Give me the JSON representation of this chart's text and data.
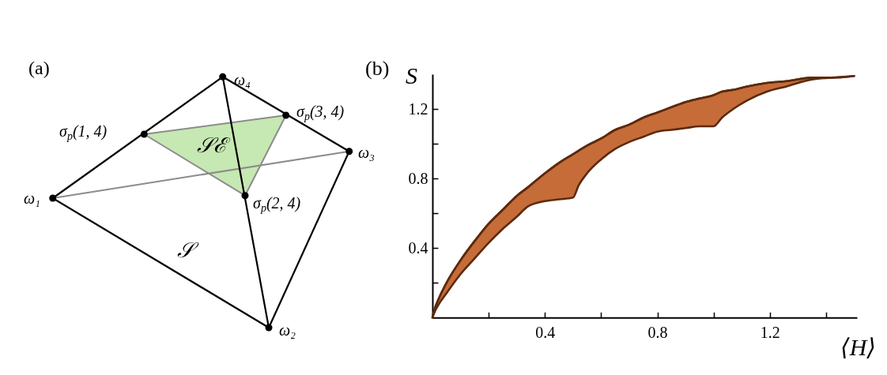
{
  "chart_data": [
    {
      "type": "other",
      "title": "(a)",
      "annotations": [
        "ω₄",
        "σ$_{p}$(3, 4)",
        "σ$_{p}$(1, 4)",
        "𝒮ℰ",
        "ω₃",
        "ω₁",
        "σ$_{p}$(2, 4)",
        "𝒮",
        "ω₂"
      ]
    },
    {
      "type": "line",
      "title": "(b)",
      "xlabel": "⟨H⟩",
      "ylabel": "S",
      "xlim": [
        0,
        1.51
      ],
      "ylim": [
        0,
        1.4
      ],
      "xticks": [
        {
          "value": 0.2,
          "label": null
        },
        0.4,
        {
          "value": 0.6,
          "label": null
        },
        0.8,
        {
          "value": 1.0,
          "label": null
        },
        1.2,
        {
          "value": 1.4,
          "label": null
        }
      ],
      "yticks": [
        {
          "value": 0.2,
          "label": null
        },
        0.4,
        {
          "value": 0.6,
          "label": null
        },
        0.8,
        {
          "value": 1.0,
          "label": null
        },
        1.2
      ],
      "series": [
        {
          "color": "#5c2a0e",
          "x": [
            0,
            0.01,
            0.02,
            0.05,
            0.1,
            0.15,
            0.2,
            0.25,
            0.3,
            0.34,
            0.4,
            0.45,
            0.5,
            0.52,
            0.55,
            0.6,
            0.65,
            0.7,
            0.75,
            0.8,
            0.85,
            0.9,
            0.95,
            1.0,
            1.03,
            1.07,
            1.12,
            1.19,
            1.26,
            1.35,
            1.42,
            1.5
          ],
          "values": [
            0,
            0.06,
            0.1,
            0.2,
            0.33,
            0.44,
            0.54,
            0.62,
            0.7,
            0.75,
            0.83,
            0.89,
            0.94,
            0.96,
            0.99,
            1.03,
            1.08,
            1.11,
            1.15,
            1.18,
            1.21,
            1.24,
            1.26,
            1.28,
            1.3,
            1.31,
            1.33,
            1.35,
            1.36,
            1.38,
            1.38,
            1.39
          ],
          "upper": [
            0,
            0.06,
            0.1,
            0.2,
            0.33,
            0.44,
            0.54,
            0.62,
            0.7,
            0.75,
            0.83,
            0.89,
            0.94,
            0.96,
            0.99,
            1.03,
            1.08,
            1.11,
            1.15,
            1.18,
            1.21,
            1.24,
            1.26,
            1.28,
            1.3,
            1.31,
            1.33,
            1.35,
            1.36,
            1.38,
            1.38,
            1.39
          ],
          "lower": [
            0,
            0.04,
            0.07,
            0.14,
            0.25,
            0.34,
            0.43,
            0.51,
            0.58,
            0.64,
            0.67,
            0.68,
            0.69,
            0.76,
            0.83,
            0.91,
            0.97,
            1.01,
            1.04,
            1.07,
            1.08,
            1.09,
            1.1,
            1.1,
            1.15,
            1.2,
            1.25,
            1.3,
            1.33,
            1.37,
            1.38,
            1.39
          ]
        }
      ]
    }
  ]
}
